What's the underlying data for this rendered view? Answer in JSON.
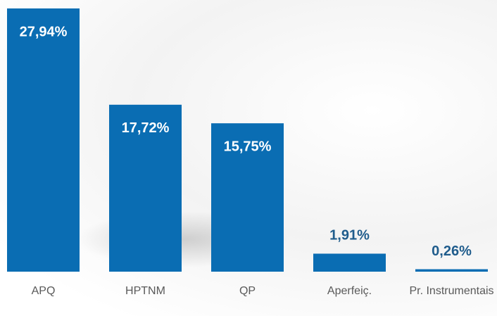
{
  "chart_data": {
    "type": "bar",
    "categories": [
      "APQ",
      "HPTNM",
      "QP",
      "Aperfeiç.",
      "Pr. Instrumentais"
    ],
    "values": [
      27.94,
      17.72,
      15.75,
      1.91,
      0.26
    ],
    "value_labels": [
      "27,94%",
      "17,72%",
      "15,75%",
      "1,91%",
      "0,26%"
    ],
    "color": "#0a6db3"
  }
}
